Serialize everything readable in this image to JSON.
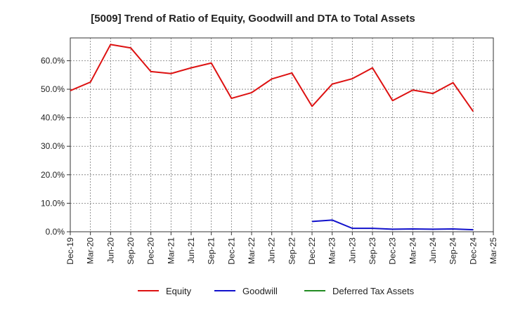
{
  "chart_data": {
    "type": "line",
    "title": "[5009]  Trend of Ratio of Equity, Goodwill and DTA to Total Assets",
    "xlabel": "",
    "ylabel": "",
    "x": [
      "Dec-19",
      "Mar-20",
      "Jun-20",
      "Sep-20",
      "Dec-20",
      "Mar-21",
      "Jun-21",
      "Sep-21",
      "Dec-21",
      "Mar-22",
      "Jun-22",
      "Sep-22",
      "Dec-22",
      "Mar-23",
      "Jun-23",
      "Sep-23",
      "Dec-23",
      "Mar-24",
      "Jun-24",
      "Sep-24",
      "Dec-24",
      "Mar-25"
    ],
    "ylim": [
      0,
      68
    ],
    "yticks": [
      0,
      10,
      20,
      30,
      40,
      50,
      60
    ],
    "ytick_labels": [
      "0.0%",
      "10.0%",
      "20.0%",
      "30.0%",
      "40.0%",
      "50.0%",
      "60.0%"
    ],
    "grid": true,
    "legend_position": "bottom",
    "series": [
      {
        "name": "Equity",
        "color": "#dd1111",
        "values": [
          49.5,
          52.5,
          65.7,
          64.5,
          56.2,
          55.5,
          57.5,
          59.2,
          46.8,
          48.8,
          53.6,
          55.7,
          44.0,
          51.8,
          53.7,
          57.5,
          46.0,
          49.7,
          48.5,
          52.3,
          42.2,
          null
        ]
      },
      {
        "name": "Goodwill",
        "color": "#1111cc",
        "values": [
          null,
          null,
          null,
          null,
          null,
          null,
          null,
          null,
          null,
          null,
          null,
          null,
          3.6,
          4.1,
          1.2,
          1.2,
          0.9,
          1.0,
          0.9,
          1.0,
          0.7,
          null
        ]
      },
      {
        "name": "Deferred Tax Assets",
        "color": "#228b22",
        "values": [
          null,
          null,
          null,
          null,
          null,
          null,
          null,
          null,
          null,
          null,
          null,
          null,
          null,
          null,
          null,
          null,
          null,
          null,
          null,
          null,
          null,
          null
        ]
      }
    ]
  }
}
